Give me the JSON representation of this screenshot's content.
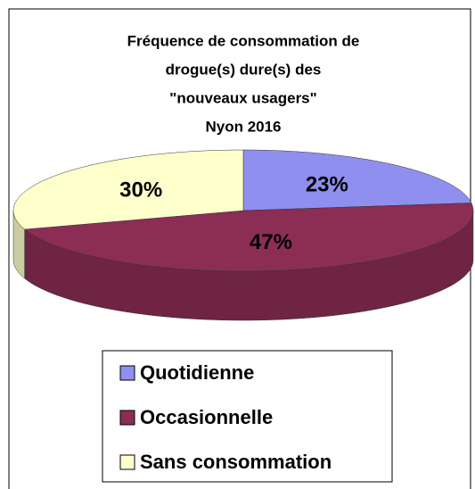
{
  "chart_data": {
    "type": "pie",
    "title": [
      "Fréquence de consommation de",
      "drogue(s) dure(s) des",
      "\"nouveaux usagers\"",
      "Nyon 2016"
    ],
    "categories": [
      "Quotidienne",
      "Occasionnelle",
      "Sans consommation"
    ],
    "values": [
      23,
      47,
      30
    ],
    "value_labels": [
      "23%",
      "47%",
      "30%"
    ],
    "colors": [
      "#8f8fef",
      "#8b2d55",
      "#ffffcc"
    ],
    "legend": "bottom"
  }
}
